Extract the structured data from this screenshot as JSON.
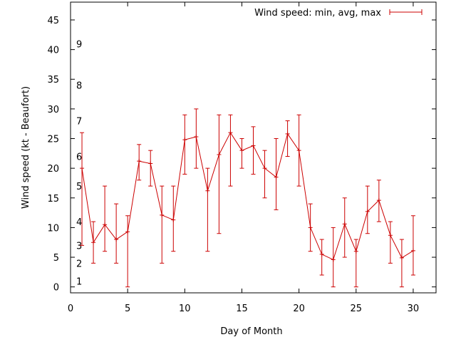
{
  "chart_data": {
    "type": "line",
    "title": "",
    "xlabel": "Day of Month",
    "ylabel": "Wind speed (kt - Beaufort)",
    "xlim": [
      0,
      32
    ],
    "ylim": [
      -1,
      48
    ],
    "xticks": [
      0,
      5,
      10,
      15,
      20,
      25,
      30
    ],
    "yticks": [
      0,
      5,
      10,
      15,
      20,
      25,
      30,
      35,
      40,
      45
    ],
    "grid": false,
    "legend_position": "top-right",
    "beaufort_labels": [
      {
        "label": "1",
        "y": 1
      },
      {
        "label": "2",
        "y": 4
      },
      {
        "label": "3",
        "y": 7
      },
      {
        "label": "4",
        "y": 11
      },
      {
        "label": "5",
        "y": 17
      },
      {
        "label": "6",
        "y": 22
      },
      {
        "label": "7",
        "y": 28
      },
      {
        "label": "8",
        "y": 34
      },
      {
        "label": "9",
        "y": 41
      }
    ],
    "series": [
      {
        "name": "Wind speed: min, avg, max",
        "color": "#cc0000",
        "x": [
          1,
          2,
          3,
          4,
          5,
          6,
          7,
          8,
          9,
          10,
          11,
          12,
          13,
          14,
          15,
          16,
          17,
          18,
          19,
          20,
          21,
          22,
          23,
          24,
          25,
          26,
          27,
          28,
          29,
          30
        ],
        "avg": [
          20,
          7.5,
          10.5,
          8,
          9.3,
          21.2,
          20.8,
          12.1,
          11.3,
          24.8,
          25.3,
          16.2,
          22.3,
          26,
          23,
          23.8,
          20,
          18.5,
          25.8,
          23,
          10,
          5.5,
          4.6,
          10.6,
          6,
          12.7,
          14.6,
          8.7,
          4.9,
          6.1
        ],
        "min": [
          7,
          4,
          6,
          4,
          0,
          18,
          17,
          4,
          6,
          19,
          20,
          6,
          9,
          17,
          20,
          19,
          15,
          13,
          22,
          17,
          6,
          2,
          0,
          5,
          0,
          9,
          11,
          4,
          0,
          2
        ],
        "max": [
          26,
          11,
          17,
          14,
          12,
          24,
          23,
          17,
          17,
          29,
          30,
          20,
          29,
          29,
          25,
          27,
          23,
          25,
          28,
          29,
          14,
          8,
          10,
          15,
          8,
          17,
          18,
          11,
          8,
          12
        ]
      }
    ]
  }
}
